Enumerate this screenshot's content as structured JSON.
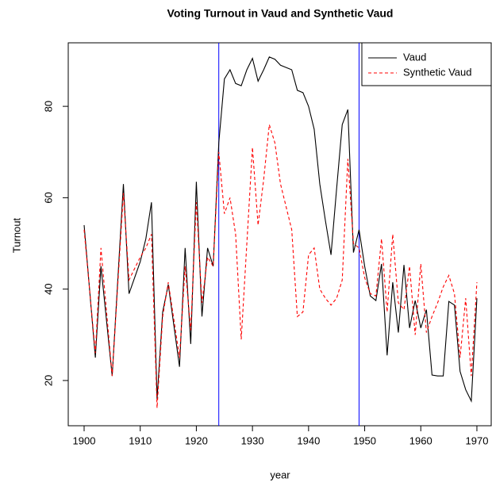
{
  "chart_data": {
    "type": "line",
    "title": "Voting Turnout in Vaud and Synthetic Vaud",
    "x_label": "year",
    "y_label": "Turnout",
    "x": [
      1900,
      1902,
      1903,
      1905,
      1907,
      1908,
      1910,
      1911,
      1912,
      1913,
      1914,
      1915,
      1917,
      1918,
      1919,
      1920,
      1921,
      1922,
      1923,
      1924,
      1925,
      1926,
      1927,
      1928,
      1929,
      1930,
      1931,
      1932,
      1933,
      1934,
      1935,
      1936,
      1937,
      1938,
      1939,
      1940,
      1941,
      1942,
      1943,
      1944,
      1945,
      1946,
      1947,
      1948,
      1949,
      1950,
      1951,
      1952,
      1953,
      1954,
      1955,
      1956,
      1957,
      1958,
      1959,
      1960,
      1961,
      1962,
      1963,
      1964,
      1965,
      1966,
      1967,
      1968,
      1969,
      1970
    ],
    "series": [
      {
        "name": "Vaud",
        "color": "#000000",
        "dash": false,
        "values": [
          54,
          25,
          45,
          21,
          63,
          39,
          46,
          51,
          59,
          16,
          35,
          41,
          23,
          49,
          28,
          63.5,
          34,
          49,
          45,
          72,
          86,
          88,
          85,
          84.5,
          88,
          90.5,
          85.5,
          88,
          90.8,
          90.3,
          89,
          88.5,
          88,
          83.5,
          83,
          80,
          75,
          63,
          55,
          47.5,
          62,
          76,
          79.3,
          48,
          53,
          45,
          38.5,
          37.5,
          45.5,
          25.5,
          41.5,
          30.5,
          45.3,
          31.5,
          37.5,
          31.5,
          35.5,
          21.2,
          21,
          21,
          37.3,
          36.5,
          22,
          18,
          15.5,
          38
        ]
      },
      {
        "name": "Synthetic Vaud",
        "color": "#ff0000",
        "dash": true,
        "values": [
          53,
          26,
          49,
          21,
          61,
          42,
          47,
          49,
          52,
          14,
          34,
          41.5,
          25,
          45,
          31,
          59,
          37,
          47,
          45,
          70,
          56.5,
          60,
          52,
          29,
          50,
          71,
          54,
          64,
          76,
          72,
          63,
          58,
          53,
          34,
          35,
          47.5,
          49,
          40,
          38,
          36.5,
          38,
          42,
          68.5,
          50,
          49,
          42.5,
          39,
          38.5,
          51,
          35,
          52,
          37,
          35.5,
          45,
          30,
          45.5,
          30.5,
          34,
          37,
          40.5,
          43,
          39,
          25,
          38,
          21,
          41.5
        ]
      }
    ],
    "vlines": [
      1924,
      1949
    ],
    "vline_color": "#0000ff",
    "xlim": [
      1897.17,
      1972.55
    ],
    "ylim": [
      10.1,
      93.9
    ],
    "xticks": [
      1900,
      1910,
      1920,
      1930,
      1940,
      1950,
      1960,
      1970
    ],
    "yticks": [
      20,
      40,
      60,
      80
    ],
    "legend": "top-right"
  }
}
